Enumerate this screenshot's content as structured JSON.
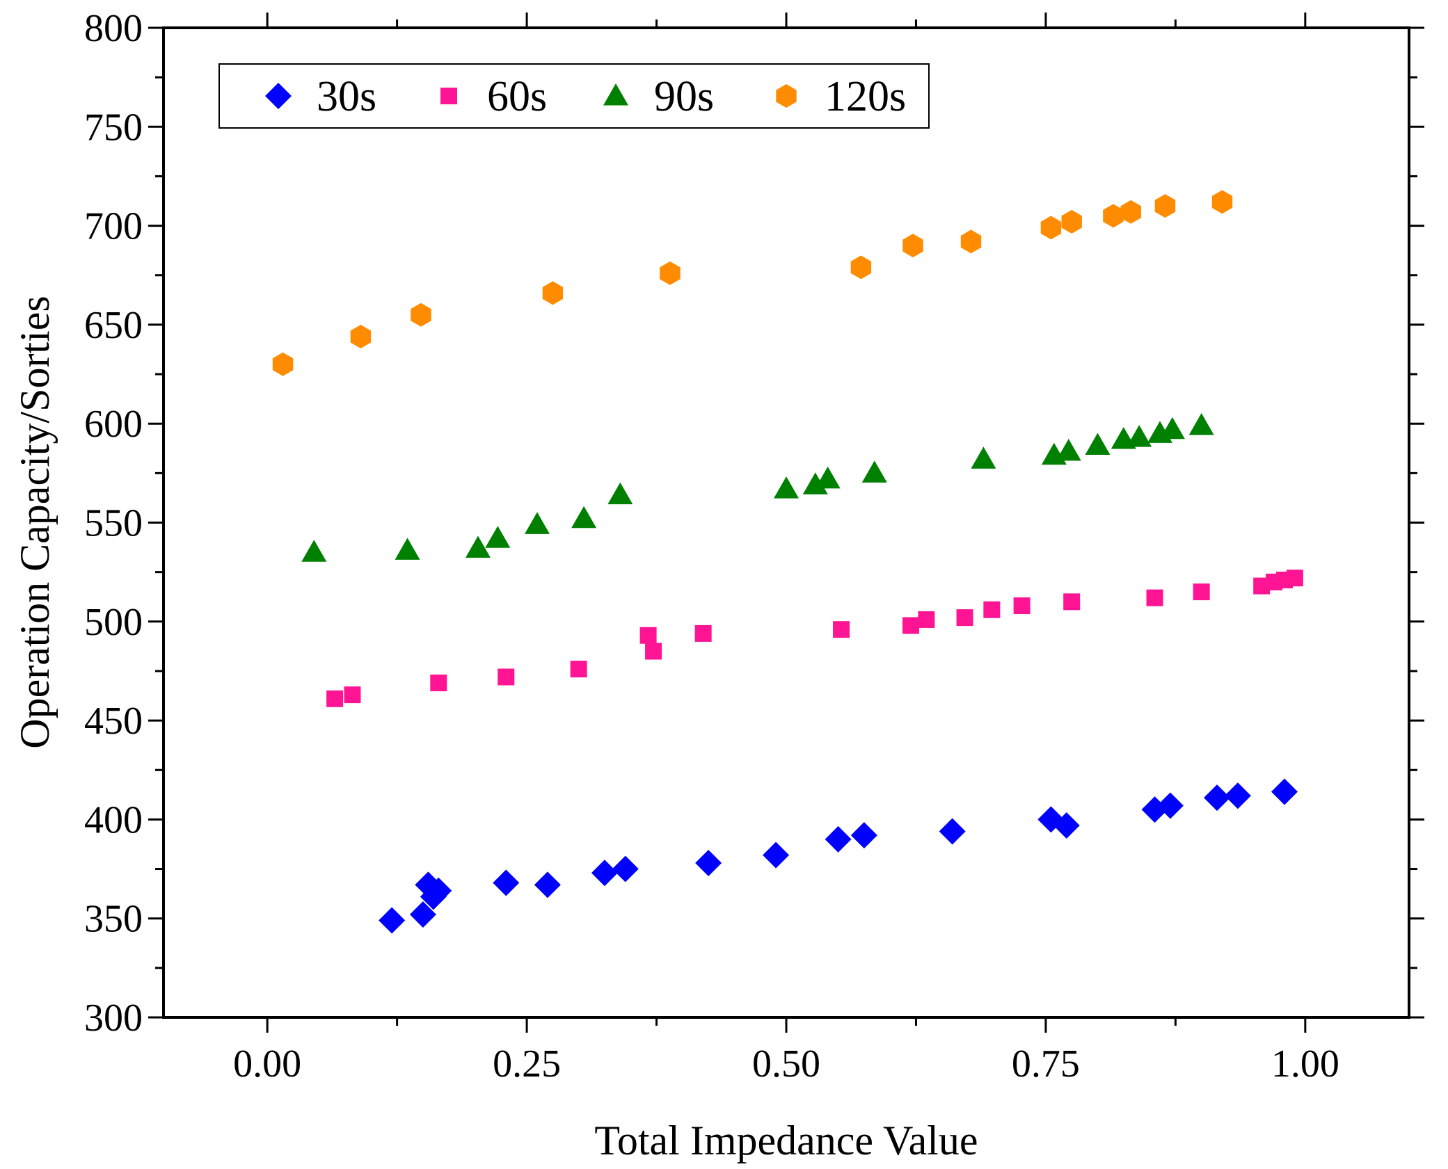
{
  "chart_data": {
    "type": "scatter",
    "title": "",
    "xlabel": "Total Impedance Value",
    "ylabel": "Operation Capacity/Sorties",
    "xlim": [
      -0.1,
      1.1
    ],
    "ylim": [
      300,
      800
    ],
    "x_ticks": [
      0.0,
      0.25,
      0.5,
      0.75,
      1.0
    ],
    "x_tick_labels": [
      "0.00",
      "0.25",
      "0.50",
      "0.75",
      "1.00"
    ],
    "y_ticks": [
      300,
      350,
      400,
      450,
      500,
      550,
      600,
      650,
      700,
      750,
      800
    ],
    "y_tick_labels": [
      "300",
      "350",
      "400",
      "450",
      "500",
      "550",
      "600",
      "650",
      "700",
      "750",
      "800"
    ],
    "grid": false,
    "legend_position": "top-left",
    "series": [
      {
        "name": "30s",
        "marker": "diamond",
        "color": "#0000ff",
        "x": [
          0.12,
          0.15,
          0.155,
          0.16,
          0.165,
          0.23,
          0.27,
          0.325,
          0.345,
          0.425,
          0.49,
          0.55,
          0.575,
          0.66,
          0.755,
          0.77,
          0.855,
          0.87,
          0.915,
          0.935,
          0.98
        ],
        "y": [
          349,
          352,
          367,
          361,
          364,
          368,
          367,
          373,
          375,
          378,
          382,
          390,
          392,
          394,
          400,
          397,
          405,
          407,
          411,
          412,
          414
        ]
      },
      {
        "name": "60s",
        "marker": "square",
        "color": "#ff1493",
        "x": [
          0.065,
          0.082,
          0.165,
          0.23,
          0.3,
          0.367,
          0.372,
          0.42,
          0.553,
          0.62,
          0.635,
          0.672,
          0.698,
          0.727,
          0.775,
          0.855,
          0.9,
          0.958,
          0.97,
          0.98,
          0.99
        ],
        "y": [
          461,
          463,
          469,
          472,
          476,
          493,
          485,
          494,
          496,
          498,
          501,
          502,
          506,
          508,
          510,
          512,
          515,
          518,
          520,
          521,
          522
        ]
      },
      {
        "name": "90s",
        "marker": "triangle",
        "color": "#008000",
        "x": [
          0.045,
          0.135,
          0.203,
          0.222,
          0.26,
          0.305,
          0.34,
          0.5,
          0.528,
          0.54,
          0.585,
          0.69,
          0.758,
          0.772,
          0.8,
          0.825,
          0.84,
          0.86,
          0.872,
          0.9
        ],
        "y": [
          535,
          536,
          537,
          542,
          549,
          552,
          564,
          567,
          569,
          572,
          575,
          582,
          584,
          586,
          589,
          592,
          593,
          595,
          597,
          599
        ]
      },
      {
        "name": "120s",
        "marker": "hexagon",
        "color": "#ff8c00",
        "x": [
          0.015,
          0.09,
          0.148,
          0.275,
          0.388,
          0.572,
          0.622,
          0.678,
          0.755,
          0.775,
          0.815,
          0.832,
          0.865,
          0.92
        ],
        "y": [
          630,
          644,
          655,
          666,
          676,
          679,
          690,
          692,
          699,
          702,
          705,
          707,
          710,
          712
        ]
      }
    ]
  }
}
